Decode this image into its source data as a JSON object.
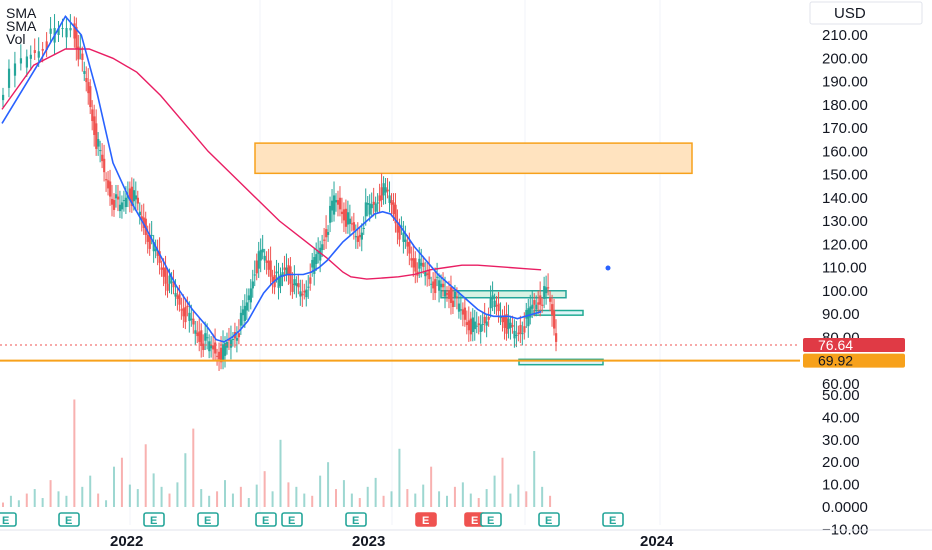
{
  "chart_data": {
    "type": "candlestick",
    "currency": "USD",
    "y_ticks": [
      "210.00",
      "200.00",
      "190.00",
      "180.00",
      "170.00",
      "160.00",
      "150.00",
      "140.00",
      "130.00",
      "120.00",
      "110.00",
      "100.00",
      "90.00",
      "80.00",
      "60.00",
      "50.00",
      "40.00",
      "30.00",
      "20.00",
      "10.00",
      "0.0000",
      "−10.00"
    ],
    "y_tick_values": [
      210,
      200,
      190,
      180,
      170,
      160,
      150,
      140,
      130,
      120,
      110,
      100,
      90,
      80,
      60,
      50,
      40,
      30,
      20,
      10,
      0,
      -10
    ],
    "x_ticks": [
      "2022",
      "2023",
      "2024"
    ],
    "legend": [
      "SMA",
      "SMA",
      "Vol"
    ],
    "price_tags": [
      {
        "text": "76.64",
        "value": 76.64,
        "color": "#e03a45",
        "text_color": "#ffffff"
      },
      {
        "text": "69.92",
        "value": 69.92,
        "color": "#f7a11b",
        "text_color": "#131722"
      }
    ],
    "horizontal_line": 69.92,
    "current_price": 76.64,
    "zones": [
      {
        "name": "resistance-zone",
        "y_from": 150.5,
        "y_to": 163.5,
        "color": "#ffe3bf",
        "border": "#f7a11b"
      },
      {
        "name": "support-zone-1",
        "y_from": 97,
        "y_to": 100,
        "color": "#d9f2e4",
        "border": "#26a69a"
      },
      {
        "name": "support-zone-2",
        "y_from": 89.5,
        "y_to": 91.5,
        "color": "#e0f4f8",
        "border": "#22ab94"
      },
      {
        "name": "support-zone-3",
        "y_from": 68.2,
        "y_to": 70.5,
        "color": "#e0f4f8",
        "border": "#22ab94"
      }
    ],
    "price_path": [
      [
        0,
        185
      ],
      [
        3,
        198
      ],
      [
        5,
        205
      ],
      [
        7,
        210
      ],
      [
        9,
        214
      ],
      [
        10,
        200
      ],
      [
        11,
        185
      ],
      [
        12,
        165
      ],
      [
        13,
        150
      ],
      [
        14,
        140
      ],
      [
        15,
        135
      ],
      [
        16,
        143
      ],
      [
        17,
        138
      ],
      [
        18,
        128
      ],
      [
        19,
        120
      ],
      [
        20,
        112
      ],
      [
        21,
        104
      ],
      [
        22,
        98
      ],
      [
        23,
        92
      ],
      [
        24,
        86
      ],
      [
        25,
        80
      ],
      [
        26,
        77
      ],
      [
        27,
        74
      ],
      [
        28,
        73
      ],
      [
        29,
        79
      ],
      [
        30,
        84
      ],
      [
        31,
        94
      ],
      [
        32,
        110
      ],
      [
        33,
        116
      ],
      [
        34,
        108
      ],
      [
        35,
        103
      ],
      [
        36,
        111
      ],
      [
        37,
        101
      ],
      [
        38,
        98
      ],
      [
        39,
        107
      ],
      [
        40,
        116
      ],
      [
        41,
        126
      ],
      [
        42,
        139
      ],
      [
        43,
        135
      ],
      [
        44,
        128
      ],
      [
        45,
        122
      ],
      [
        46,
        134
      ],
      [
        47,
        137
      ],
      [
        48,
        143
      ],
      [
        49,
        140
      ],
      [
        50,
        128
      ],
      [
        51,
        120
      ],
      [
        52,
        112
      ],
      [
        53,
        109
      ],
      [
        54,
        106
      ],
      [
        55,
        102
      ],
      [
        56,
        100
      ],
      [
        57,
        97
      ],
      [
        58,
        91
      ],
      [
        59,
        86
      ],
      [
        60,
        83
      ],
      [
        61,
        88
      ],
      [
        62,
        95
      ],
      [
        63,
        90
      ],
      [
        64,
        84
      ],
      [
        65,
        81
      ],
      [
        66,
        86
      ],
      [
        67,
        93
      ],
      [
        68,
        97
      ],
      [
        69,
        99
      ],
      [
        70,
        80
      ]
    ],
    "sma_fast": [
      [
        0,
        172
      ],
      [
        5,
        200
      ],
      [
        8,
        218
      ],
      [
        10,
        210
      ],
      [
        12,
        185
      ],
      [
        14,
        155
      ],
      [
        16,
        140
      ],
      [
        18,
        128
      ],
      [
        20,
        115
      ],
      [
        22,
        102
      ],
      [
        24,
        92
      ],
      [
        26,
        84
      ],
      [
        27,
        79
      ],
      [
        28,
        78
      ],
      [
        29,
        80
      ],
      [
        30,
        83
      ],
      [
        31,
        87
      ],
      [
        32,
        93
      ],
      [
        33,
        99
      ],
      [
        34,
        103
      ],
      [
        35,
        106
      ],
      [
        36,
        107
      ],
      [
        37,
        107
      ],
      [
        38,
        107
      ],
      [
        39,
        108
      ],
      [
        40,
        110
      ],
      [
        41,
        113
      ],
      [
        42,
        117
      ],
      [
        43,
        121
      ],
      [
        44,
        124
      ],
      [
        45,
        127
      ],
      [
        46,
        130
      ],
      [
        47,
        133
      ],
      [
        48,
        134
      ],
      [
        49,
        133
      ],
      [
        50,
        129
      ],
      [
        51,
        124
      ],
      [
        52,
        119
      ],
      [
        53,
        115
      ],
      [
        54,
        111
      ],
      [
        55,
        107
      ],
      [
        56,
        104
      ],
      [
        57,
        101
      ],
      [
        58,
        98
      ],
      [
        59,
        95
      ],
      [
        60,
        92
      ],
      [
        61,
        90
      ],
      [
        62,
        89
      ],
      [
        63,
        89
      ],
      [
        64,
        89
      ],
      [
        65,
        88
      ],
      [
        66,
        89
      ],
      [
        67,
        90
      ],
      [
        68,
        91
      ]
    ],
    "sma_slow": [
      [
        0,
        178
      ],
      [
        4,
        197
      ],
      [
        8,
        204
      ],
      [
        11,
        204
      ],
      [
        14,
        200
      ],
      [
        17,
        194
      ],
      [
        20,
        184
      ],
      [
        23,
        172
      ],
      [
        26,
        160
      ],
      [
        29,
        150
      ],
      [
        32,
        140
      ],
      [
        35,
        130
      ],
      [
        38,
        122
      ],
      [
        41,
        114
      ],
      [
        43,
        108
      ],
      [
        44,
        106
      ],
      [
        46,
        105
      ],
      [
        48,
        105.5
      ],
      [
        50,
        106
      ],
      [
        52,
        107
      ],
      [
        54,
        109
      ],
      [
        56,
        110
      ],
      [
        58,
        111
      ],
      [
        60,
        111
      ],
      [
        62,
        110.5
      ],
      [
        64,
        110
      ],
      [
        66,
        109.5
      ],
      [
        68,
        109
      ]
    ],
    "volume": [
      2,
      5,
      3,
      6,
      8,
      4,
      12,
      7,
      5,
      48,
      9,
      14,
      6,
      3,
      18,
      22,
      10,
      8,
      28,
      15,
      9,
      6,
      11,
      24,
      35,
      8,
      5,
      7,
      12,
      6,
      9,
      4,
      10,
      16,
      7,
      30,
      11,
      9,
      6,
      5,
      14,
      20,
      8,
      12,
      6,
      4,
      9,
      13,
      5,
      7,
      26,
      8,
      6,
      10,
      18,
      7,
      5,
      9,
      11,
      6,
      4,
      8,
      14,
      22,
      6,
      10,
      7,
      25,
      9,
      5
    ],
    "earnings_markers": [
      {
        "label": "E",
        "style": "green"
      },
      {
        "label": "E",
        "style": "green"
      },
      {
        "label": "E",
        "style": "green"
      },
      {
        "label": "E",
        "style": "green"
      },
      {
        "label": "E",
        "style": "green"
      },
      {
        "label": "E",
        "style": "green"
      },
      {
        "label": "E",
        "style": "green"
      },
      {
        "label": "E",
        "style": "red"
      },
      {
        "label": "E",
        "style": "red"
      },
      {
        "label": "E",
        "style": "green"
      },
      {
        "label": "E",
        "style": "green"
      },
      {
        "label": "E",
        "style": "green"
      },
      {
        "label": "E",
        "style": "purple-outline"
      }
    ],
    "colors": {
      "up": "#26a69a",
      "down": "#ef5350",
      "sma_fast": "#2962ff",
      "sma_slow": "#e91e63",
      "grid": "#f0f3fa"
    }
  }
}
